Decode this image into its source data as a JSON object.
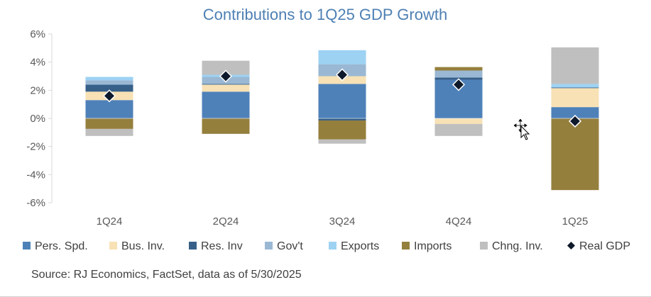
{
  "chart_data": {
    "type": "bar",
    "stacked": true,
    "title": "Contributions to 1Q25 GDP Growth",
    "categories": [
      "1Q24",
      "2Q24",
      "3Q24",
      "4Q24",
      "1Q25"
    ],
    "ylim": [
      -6,
      6
    ],
    "yticks": [
      "6%",
      "4%",
      "2%",
      "0%",
      "-2%",
      "-4%",
      "-6%"
    ],
    "ytick_values": [
      6,
      4,
      2,
      0,
      -2,
      -4,
      -6
    ],
    "grid": false,
    "legend_position": "bottom",
    "series": [
      {
        "name": "Pers. Spd.",
        "color": "#4f81b9",
        "values": [
          1.3,
          1.9,
          2.45,
          2.75,
          0.8
        ]
      },
      {
        "name": "Bus. Inv.",
        "color": "#f7e1b5",
        "values": [
          0.6,
          0.5,
          0.55,
          -0.4,
          1.35
        ]
      },
      {
        "name": "Res. Inv",
        "color": "#376089",
        "values": [
          0.5,
          0.05,
          -0.15,
          0.15,
          0.05
        ]
      },
      {
        "name": "Gov't",
        "color": "#9ab8d3",
        "values": [
          0.3,
          0.5,
          0.85,
          0.5,
          0.0
        ]
      },
      {
        "name": "Exports",
        "color": "#9dd2f3",
        "values": [
          0.25,
          0.15,
          1.0,
          0.0,
          0.25
        ]
      },
      {
        "name": "Imports",
        "color": "#957f3d",
        "values": [
          -0.75,
          -1.1,
          -1.35,
          0.25,
          -5.1
        ]
      },
      {
        "name": "Chng. Inv.",
        "color": "#bfbfbf",
        "values": [
          -0.5,
          1.0,
          -0.3,
          -0.85,
          2.6
        ]
      }
    ],
    "line_series": {
      "name": "Real GDP",
      "color": "#0e1a2b",
      "values": [
        1.6,
        3.0,
        3.1,
        2.4,
        -0.2
      ]
    },
    "source": "Source: RJ Economics, FactSet, data as of 5/30/2025"
  },
  "cursor": {
    "icon": "move-cursor-icon"
  }
}
